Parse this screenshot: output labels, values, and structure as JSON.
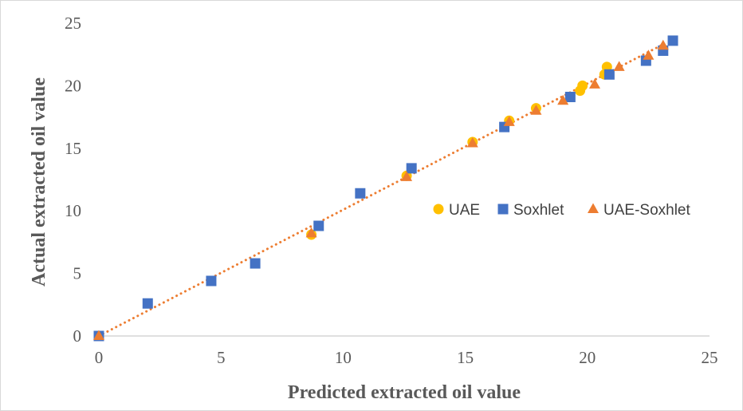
{
  "chart_data": {
    "type": "scatter",
    "xlabel": "Predicted extracted oil value",
    "ylabel": "Actual  extracted  oil value",
    "xlim": [
      0,
      25
    ],
    "ylim": [
      0,
      25
    ],
    "xticks": [
      0,
      5,
      10,
      15,
      20,
      25
    ],
    "yticks": [
      0,
      5,
      10,
      15,
      20,
      25
    ],
    "grid": false,
    "legend_position": "right",
    "trendline": {
      "style": "dotted",
      "color": "#ED7D31",
      "x": [
        0,
        23.1
      ],
      "y": [
        0,
        23.3
      ]
    },
    "series": [
      {
        "name": "UAE",
        "marker": "circle",
        "color": "#FFC000",
        "points": [
          [
            8.7,
            8.1
          ],
          [
            12.6,
            12.8
          ],
          [
            15.3,
            15.5
          ],
          [
            16.8,
            17.2
          ],
          [
            17.9,
            18.2
          ],
          [
            19.7,
            19.6
          ],
          [
            19.8,
            20.0
          ],
          [
            20.7,
            20.9
          ],
          [
            20.8,
            21.5
          ]
        ]
      },
      {
        "name": "Soxhlet",
        "marker": "square",
        "color": "#4472C4",
        "points": [
          [
            0,
            0
          ],
          [
            2.0,
            2.6
          ],
          [
            4.6,
            4.4
          ],
          [
            6.4,
            5.8
          ],
          [
            9.0,
            8.8
          ],
          [
            10.7,
            11.4
          ],
          [
            12.8,
            13.4
          ],
          [
            16.6,
            16.7
          ],
          [
            19.3,
            19.1
          ],
          [
            20.9,
            20.9
          ],
          [
            22.4,
            22.0
          ],
          [
            23.1,
            22.8
          ],
          [
            23.5,
            23.6
          ]
        ]
      },
      {
        "name": "UAE-Soxhlet",
        "marker": "triangle",
        "color": "#ED7D31",
        "points": [
          [
            0,
            0
          ],
          [
            8.7,
            8.2
          ],
          [
            12.6,
            12.7
          ],
          [
            15.3,
            15.4
          ],
          [
            16.8,
            17.1
          ],
          [
            17.9,
            18.0
          ],
          [
            19.0,
            18.8
          ],
          [
            20.3,
            20.1
          ],
          [
            21.3,
            21.5
          ],
          [
            22.5,
            22.4
          ],
          [
            23.1,
            23.2
          ]
        ]
      }
    ]
  }
}
